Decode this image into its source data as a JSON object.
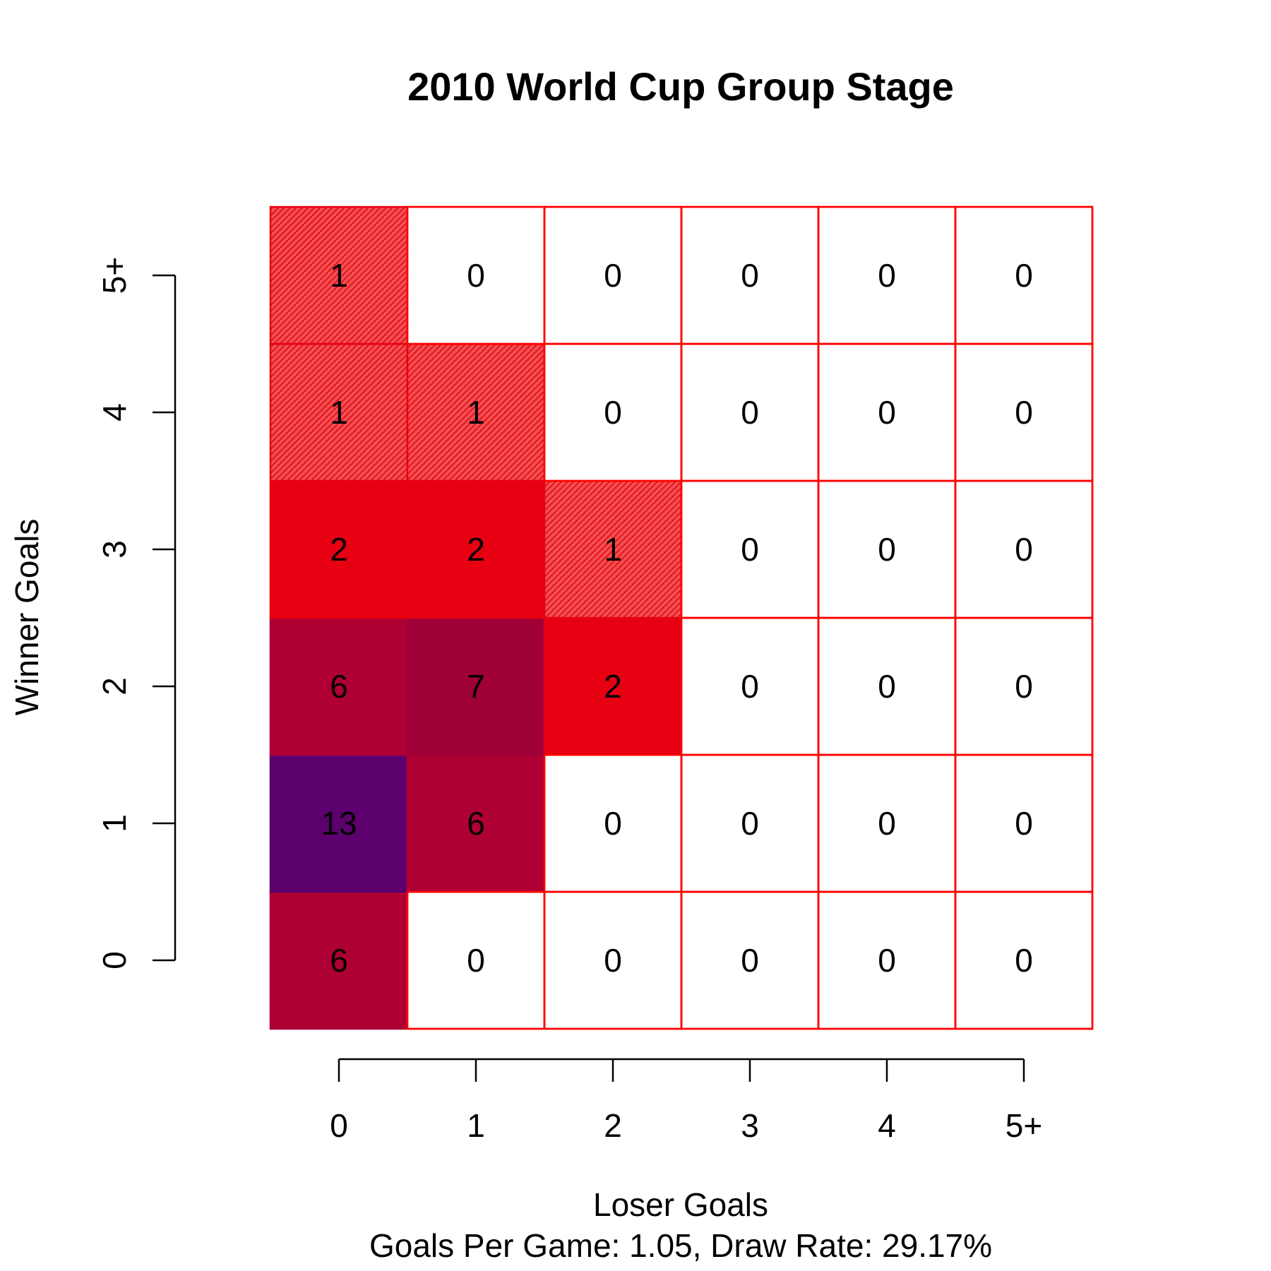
{
  "chart_data": {
    "type": "heatmap",
    "title": "2010 World Cup Group Stage",
    "xlabel": "Loser Goals",
    "ylabel": "Winner Goals",
    "subtitle": "Goals Per Game: 1.05, Draw Rate: 29.17%",
    "x_categories": [
      "0",
      "1",
      "2",
      "3",
      "4",
      "5+"
    ],
    "y_categories": [
      "0",
      "1",
      "2",
      "3",
      "4",
      "5+"
    ],
    "values": [
      [
        6,
        0,
        0,
        0,
        0,
        0
      ],
      [
        13,
        6,
        0,
        0,
        0,
        0
      ],
      [
        6,
        7,
        2,
        0,
        0,
        0
      ],
      [
        2,
        2,
        1,
        0,
        0,
        0
      ],
      [
        1,
        1,
        0,
        0,
        0,
        0
      ],
      [
        1,
        0,
        0,
        0,
        0,
        0
      ]
    ],
    "colors": {
      "0": "#ffffff",
      "1": "hatched-red",
      "2": "#e60012",
      "6": "#ae0032",
      "7": "#a00038",
      "13": "#5c006e",
      "cell_border": "#ff0000"
    }
  }
}
